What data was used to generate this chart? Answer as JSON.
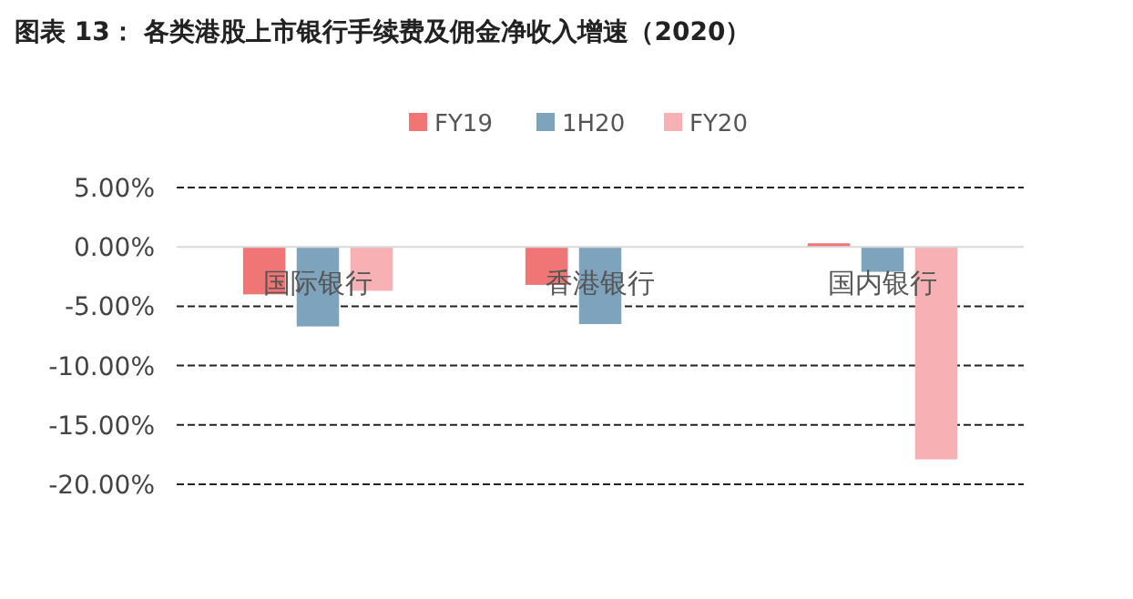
{
  "chart_data": {
    "type": "bar",
    "title": "图表 13：  各类港股上市银行手续费及佣金净收入增速（2020）",
    "categories": [
      "国际银行",
      "香港银行",
      "国内银行"
    ],
    "series": [
      {
        "name": "FY19",
        "color": "#f07575",
        "values": [
          -4.0,
          -3.2,
          0.3
        ]
      },
      {
        "name": "1H20",
        "color": "#7ea3bd",
        "values": [
          -6.7,
          -6.5,
          -2.1
        ]
      },
      {
        "name": "FY20",
        "color": "#f7b0b3",
        "values": [
          -3.7,
          null,
          -17.9
        ]
      }
    ],
    "ylim": [
      -20,
      5
    ],
    "yticks": [
      {
        "value": -20,
        "label": "-20.00%"
      },
      {
        "value": -15,
        "label": "-15.00%"
      },
      {
        "value": -10,
        "label": "-10.00%"
      },
      {
        "value": -5,
        "label": "-5.00%"
      },
      {
        "value": 0,
        "label": "0.00%"
      },
      {
        "value": 5,
        "label": "5.00%"
      }
    ],
    "grid": "y",
    "legend": "top"
  }
}
